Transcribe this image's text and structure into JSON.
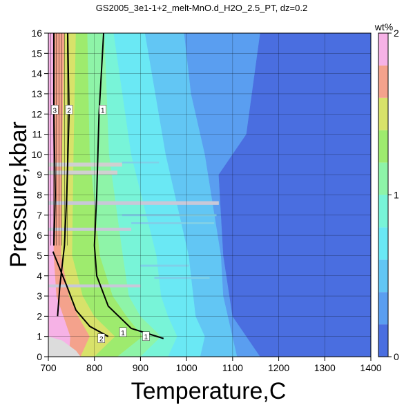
{
  "chart_data": {
    "type": "heatmap",
    "title": "GS2005_3e1-1+2_melt-MnO.d_H2O_2.5_PT, dz=0.2",
    "xlabel": "Temperature,C",
    "ylabel": "Pressure,kbar",
    "xlim": [
      700,
      1400
    ],
    "ylim": [
      0,
      16
    ],
    "xticks": [
      "700",
      "800",
      "900",
      "1000",
      "1100",
      "1200",
      "1300",
      "1400"
    ],
    "yticks": [
      "0",
      "1",
      "2",
      "3",
      "4",
      "5",
      "6",
      "7",
      "8",
      "9",
      "10",
      "11",
      "12",
      "13",
      "14",
      "15",
      "16"
    ],
    "grid": true,
    "colorbar": {
      "label": "wt%",
      "ticks": [
        "0",
        "1",
        "2"
      ],
      "range": [
        0,
        2
      ],
      "step": 0.2,
      "colors": [
        "#3b35c8",
        "#4a6ee0",
        "#5a9ef0",
        "#62c6f4",
        "#6ae8f4",
        "#78f4d8",
        "#8ef4a8",
        "#9eeb6e",
        "#d8e26a",
        "#f4a28c",
        "#f6b2e6"
      ]
    },
    "contour_labels": [
      {
        "text": "3",
        "x": 714,
        "y": 12.2
      },
      {
        "text": "2",
        "x": 745,
        "y": 12.2
      },
      {
        "text": "1",
        "x": 818,
        "y": 12.2
      },
      {
        "text": "1",
        "x": 862,
        "y": 1.2
      },
      {
        "text": "1",
        "x": 912,
        "y": 1.0
      },
      {
        "text": "2",
        "x": 815,
        "y": 0.9
      }
    ]
  }
}
